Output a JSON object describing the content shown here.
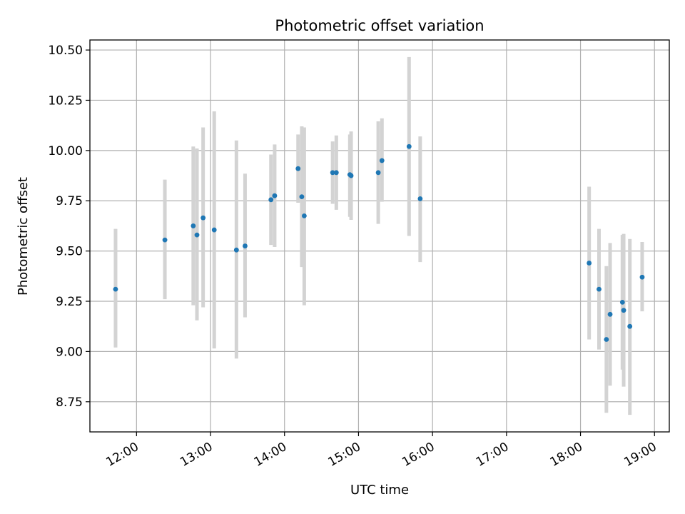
{
  "chart_data": {
    "type": "scatter",
    "title": "Photometric offset variation",
    "xlabel": "UTC time",
    "ylabel": "Photometric offset",
    "x_tick_labels": [
      "12:00",
      "13:00",
      "14:00",
      "15:00",
      "16:00",
      "17:00",
      "18:00",
      "19:00"
    ],
    "x_ticks_hours": [
      12,
      13,
      14,
      15,
      16,
      17,
      18,
      19
    ],
    "xlim_hours": [
      11.37,
      19.2
    ],
    "y_ticks": [
      8.75,
      9.0,
      9.25,
      9.5,
      9.75,
      10.0,
      10.25,
      10.5
    ],
    "y_tick_labels": [
      "8.75",
      "9.00",
      "9.25",
      "9.50",
      "9.75",
      "10.00",
      "10.25",
      "10.50"
    ],
    "ylim": [
      8.6,
      10.55
    ],
    "grid": true,
    "colors": {
      "point": "#1f77b4",
      "errorbar": "#d3d3d3",
      "grid": "#b0b0b0"
    },
    "points": [
      {
        "time": "11:43",
        "y": 9.31,
        "ymin": 9.02,
        "ymax": 9.61
      },
      {
        "time": "12:23",
        "y": 9.555,
        "ymin": 9.26,
        "ymax": 9.855
      },
      {
        "time": "12:46",
        "y": 9.625,
        "ymin": 9.23,
        "ymax": 10.02
      },
      {
        "time": "12:49",
        "y": 9.58,
        "ymin": 9.155,
        "ymax": 10.01
      },
      {
        "time": "12:54",
        "y": 9.665,
        "ymin": 9.22,
        "ymax": 10.115
      },
      {
        "time": "13:03",
        "y": 9.605,
        "ymin": 9.015,
        "ymax": 10.195
      },
      {
        "time": "13:21",
        "y": 9.505,
        "ymin": 8.965,
        "ymax": 10.05
      },
      {
        "time": "13:28",
        "y": 9.525,
        "ymin": 9.17,
        "ymax": 9.885
      },
      {
        "time": "13:49",
        "y": 9.755,
        "ymin": 9.53,
        "ymax": 9.98
      },
      {
        "time": "13:52",
        "y": 9.775,
        "ymin": 9.52,
        "ymax": 10.03
      },
      {
        "time": "14:11",
        "y": 9.91,
        "ymin": 9.74,
        "ymax": 10.08
      },
      {
        "time": "14:14",
        "y": 9.77,
        "ymin": 9.42,
        "ymax": 10.12
      },
      {
        "time": "14:16",
        "y": 9.675,
        "ymin": 9.23,
        "ymax": 10.115
      },
      {
        "time": "14:39",
        "y": 9.89,
        "ymin": 9.735,
        "ymax": 10.045
      },
      {
        "time": "14:42",
        "y": 9.89,
        "ymin": 9.705,
        "ymax": 10.075
      },
      {
        "time": "14:53",
        "y": 9.88,
        "ymin": 9.67,
        "ymax": 10.08
      },
      {
        "time": "14:54",
        "y": 9.875,
        "ymin": 9.655,
        "ymax": 10.095
      },
      {
        "time": "15:16",
        "y": 9.89,
        "ymin": 9.635,
        "ymax": 10.145
      },
      {
        "time": "15:19",
        "y": 9.95,
        "ymin": 9.745,
        "ymax": 10.16
      },
      {
        "time": "15:41",
        "y": 10.02,
        "ymin": 9.575,
        "ymax": 10.465
      },
      {
        "time": "15:50",
        "y": 9.76,
        "ymin": 9.445,
        "ymax": 10.07
      },
      {
        "time": "18:07",
        "y": 9.44,
        "ymin": 9.06,
        "ymax": 9.82
      },
      {
        "time": "18:15",
        "y": 9.31,
        "ymin": 9.01,
        "ymax": 9.61
      },
      {
        "time": "18:21",
        "y": 9.06,
        "ymin": 8.695,
        "ymax": 9.425
      },
      {
        "time": "18:24",
        "y": 9.185,
        "ymin": 8.83,
        "ymax": 9.54
      },
      {
        "time": "18:34",
        "y": 9.245,
        "ymin": 8.91,
        "ymax": 9.58
      },
      {
        "time": "18:35",
        "y": 9.205,
        "ymin": 8.825,
        "ymax": 9.585
      },
      {
        "time": "18:40",
        "y": 9.125,
        "ymin": 8.685,
        "ymax": 9.56
      },
      {
        "time": "18:50",
        "y": 9.37,
        "ymin": 9.2,
        "ymax": 9.545
      }
    ]
  }
}
